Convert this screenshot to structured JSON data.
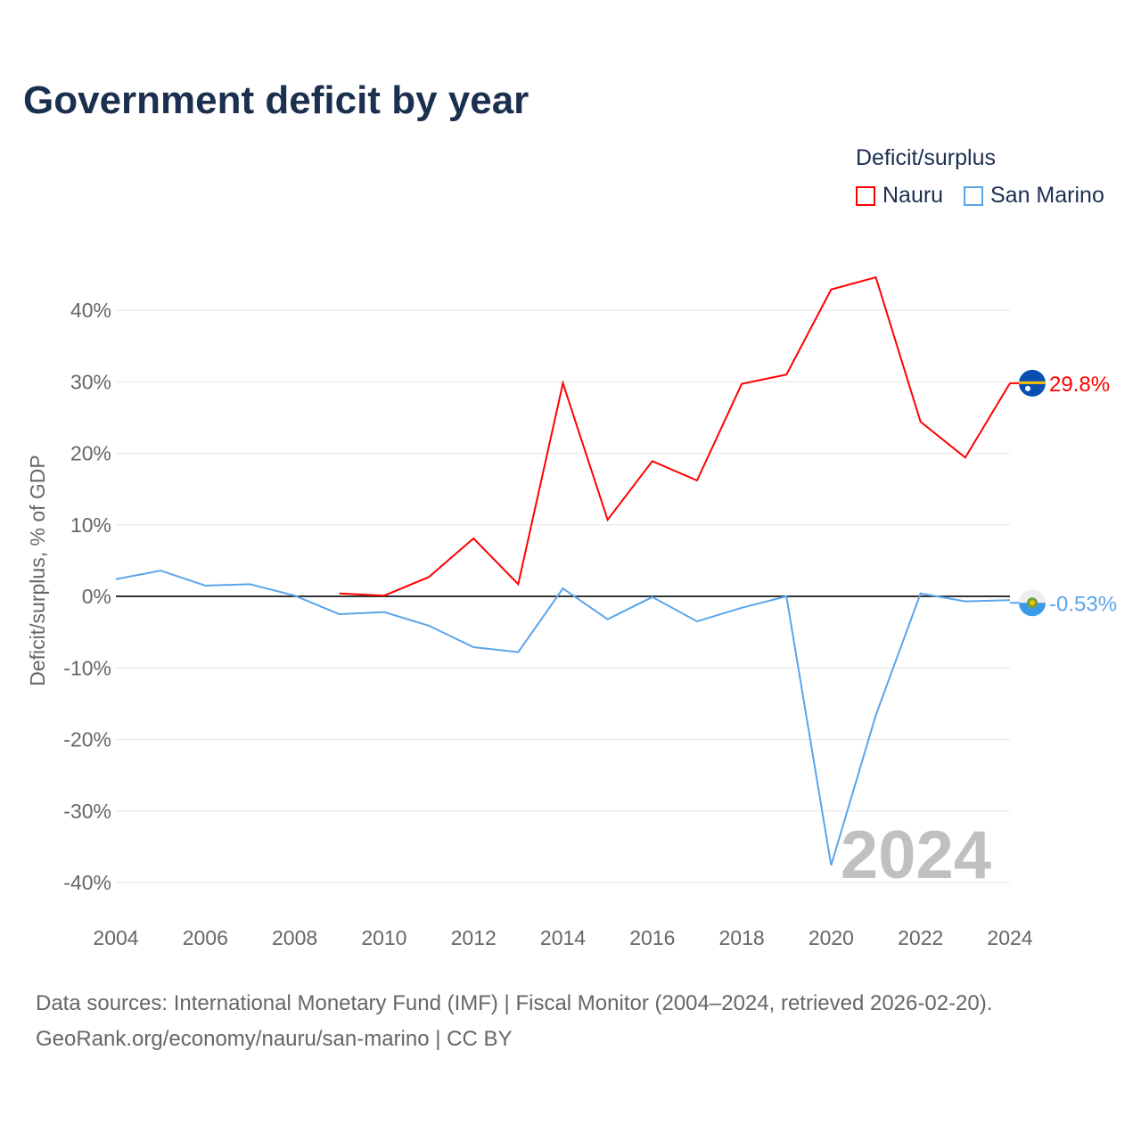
{
  "chart_data": {
    "type": "line",
    "title": "Government deficit by year",
    "ylabel": "Deficit/surplus, % of GDP",
    "xlabel": "",
    "ylim": [
      -40,
      40
    ],
    "xlim": [
      2004,
      2024
    ],
    "yticks": [
      40,
      30,
      20,
      10,
      0,
      -10,
      -20,
      -30,
      -40
    ],
    "ytick_labels": [
      "40%",
      "30%",
      "20%",
      "10%",
      "0%",
      "-10%",
      "-20%",
      "-30%",
      "-40%"
    ],
    "xticks": [
      "2004",
      "2006",
      "2008",
      "2010",
      "2012",
      "2014",
      "2016",
      "2018",
      "2020",
      "2022",
      "2024"
    ],
    "legend_title": "Deficit/surplus",
    "legend_position": "top-right",
    "watermark_year": "2024",
    "series": [
      {
        "name": "Nauru",
        "color": "#ff0000",
        "end_label": "29.8%",
        "x": [
          2009,
          2010,
          2011,
          2012,
          2013,
          2014,
          2015,
          2016,
          2017,
          2018,
          2019,
          2020,
          2021,
          2022,
          2023,
          2024
        ],
        "values": [
          0.4,
          0.1,
          2.7,
          8.1,
          1.7,
          29.8,
          10.7,
          18.9,
          16.2,
          29.7,
          31.0,
          42.9,
          44.6,
          24.4,
          19.4,
          29.8
        ]
      },
      {
        "name": "San Marino",
        "color": "#5aa5ea",
        "end_label": "-0.53%",
        "x": [
          2004,
          2005,
          2006,
          2007,
          2008,
          2009,
          2010,
          2011,
          2012,
          2013,
          2014,
          2015,
          2016,
          2017,
          2018,
          2019,
          2020,
          2021,
          2022,
          2023,
          2024
        ],
        "values": [
          2.4,
          3.6,
          1.5,
          1.7,
          0.1,
          -2.5,
          -2.2,
          -4.1,
          -7.1,
          -7.8,
          1.1,
          -3.2,
          -0.1,
          -3.5,
          -1.6,
          0,
          -37.6,
          -16.6,
          0.4,
          -0.7,
          -0.53
        ]
      }
    ]
  },
  "footer": {
    "line1": "Data sources: International Monetary Fund (IMF) | Fiscal Monitor (2004–2024, retrieved 2026-02-20).",
    "line2": "GeoRank.org/economy/nauru/san-marino | CC BY"
  }
}
